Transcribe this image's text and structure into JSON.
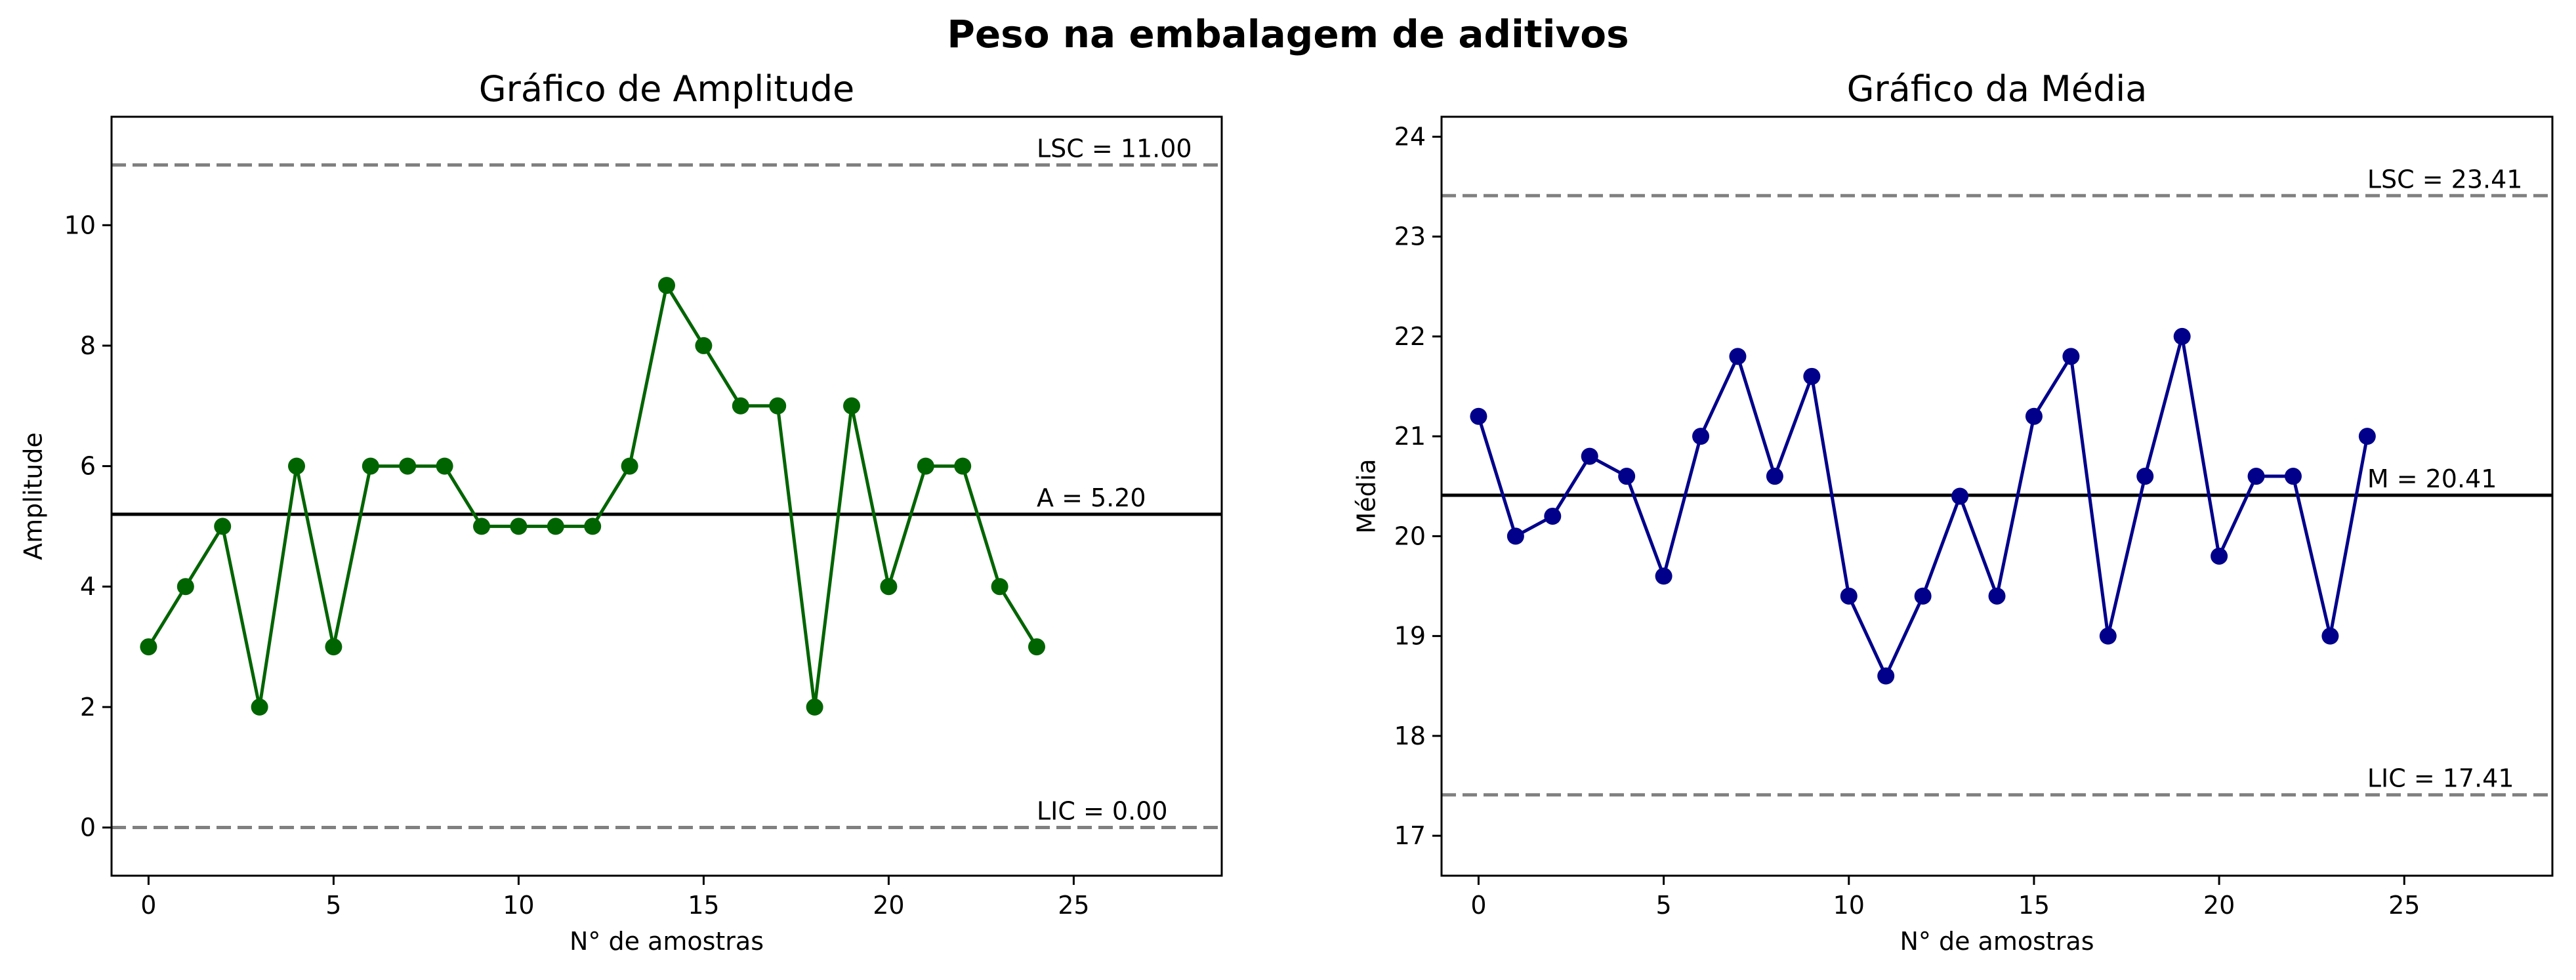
{
  "suptitle": "Peso na embalagem de aditivos",
  "chart_data": [
    {
      "type": "line",
      "title": "Gráfico de Amplitude",
      "xlabel": "N° de amostras",
      "ylabel": "Amplitude",
      "xlim": [
        -1,
        29
      ],
      "ylim": [
        -0.8,
        11.8
      ],
      "xticks": [
        0,
        5,
        10,
        15,
        20,
        25
      ],
      "yticks": [
        0,
        2,
        4,
        6,
        8,
        10
      ],
      "grid": false,
      "series": [
        {
          "color": "#006400",
          "x": [
            0,
            1,
            2,
            3,
            4,
            5,
            6,
            7,
            8,
            9,
            10,
            11,
            12,
            13,
            14,
            15,
            16,
            17,
            18,
            19,
            20,
            21,
            22,
            23,
            24
          ],
          "values": [
            3,
            4,
            5,
            2,
            6,
            3,
            6,
            6,
            6,
            5,
            5,
            5,
            5,
            6,
            9,
            8,
            7,
            7,
            2,
            7,
            4,
            6,
            6,
            4,
            3
          ]
        }
      ],
      "reference_lines": [
        {
          "value": 11.0,
          "label": "LSC = 11.00",
          "style": "dashed",
          "color": "#808080"
        },
        {
          "value": 5.2,
          "label": "A = 5.20",
          "style": "solid",
          "color": "#000000"
        },
        {
          "value": 0.0,
          "label": "LIC = 0.00",
          "style": "dashed",
          "color": "#808080"
        }
      ]
    },
    {
      "type": "line",
      "title": "Gráfico da Média",
      "xlabel": "N° de amostras",
      "ylabel": "Média",
      "xlim": [
        -1,
        29
      ],
      "ylim": [
        16.6,
        24.2
      ],
      "xticks": [
        0,
        5,
        10,
        15,
        20,
        25
      ],
      "yticks": [
        17,
        18,
        19,
        20,
        21,
        22,
        23,
        24
      ],
      "grid": false,
      "series": [
        {
          "color": "#00008B",
          "x": [
            0,
            1,
            2,
            3,
            4,
            5,
            6,
            7,
            8,
            9,
            10,
            11,
            12,
            13,
            14,
            15,
            16,
            17,
            18,
            19,
            20,
            21,
            22,
            23,
            24
          ],
          "values": [
            21.2,
            20.0,
            20.2,
            20.8,
            20.6,
            19.6,
            21.0,
            21.8,
            20.6,
            21.6,
            19.4,
            18.6,
            19.4,
            20.4,
            19.4,
            21.2,
            21.8,
            19.0,
            20.6,
            22.0,
            19.8,
            20.6,
            20.6,
            19.0,
            21.0
          ]
        }
      ],
      "reference_lines": [
        {
          "value": 23.41,
          "label": "LSC = 23.41",
          "style": "dashed",
          "color": "#808080"
        },
        {
          "value": 20.41,
          "label": "M = 20.41",
          "style": "solid",
          "color": "#000000"
        },
        {
          "value": 17.41,
          "label": "LIC = 17.41",
          "style": "dashed",
          "color": "#808080"
        }
      ]
    }
  ]
}
